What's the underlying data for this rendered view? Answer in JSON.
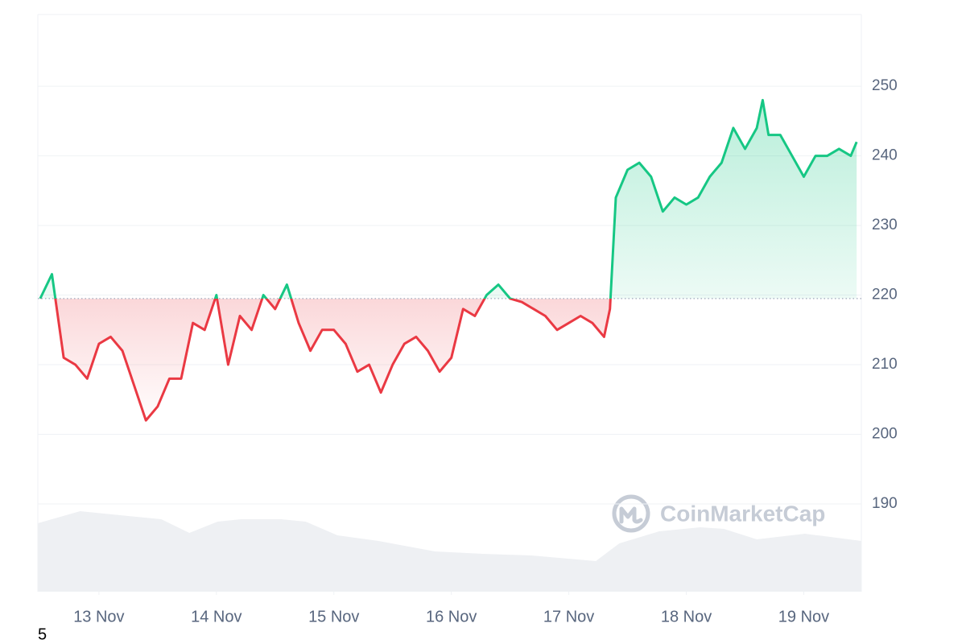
{
  "chart_data": {
    "type": "baseline-area",
    "x": [
      12.5,
      12.6,
      12.7,
      12.8,
      12.9,
      13.0,
      13.1,
      13.2,
      13.3,
      13.4,
      13.5,
      13.6,
      13.7,
      13.8,
      13.9,
      14.0,
      14.1,
      14.2,
      14.3,
      14.4,
      14.5,
      14.6,
      14.7,
      14.8,
      14.9,
      15.0,
      15.1,
      15.2,
      15.3,
      15.4,
      15.5,
      15.6,
      15.7,
      15.8,
      15.9,
      16.0,
      16.1,
      16.2,
      16.3,
      16.4,
      16.5,
      16.6,
      16.7,
      16.8,
      16.9,
      17.0,
      17.1,
      17.2,
      17.3,
      17.35,
      17.4,
      17.5,
      17.6,
      17.7,
      17.8,
      17.9,
      18.0,
      18.1,
      18.2,
      18.3,
      18.4,
      18.5,
      18.6,
      18.65,
      18.7,
      18.8,
      18.9,
      19.0,
      19.1,
      19.2,
      19.3,
      19.4,
      19.45
    ],
    "values": [
      219.5,
      223,
      211,
      210,
      208,
      213,
      214,
      212,
      207,
      202,
      204,
      208,
      208,
      216,
      215,
      220,
      210,
      217,
      215,
      220,
      218,
      221.5,
      216,
      212,
      215,
      215,
      213,
      209,
      210,
      206,
      210,
      213,
      214,
      212,
      209,
      211,
      218,
      217,
      220,
      221.5,
      219.5,
      219,
      218,
      217,
      215,
      216,
      217,
      216,
      214,
      218,
      234,
      238,
      239,
      237,
      232,
      234,
      233,
      234,
      237,
      239,
      244,
      241,
      244,
      248,
      243,
      243,
      240,
      237,
      240,
      240,
      241,
      240,
      242
    ],
    "baseline": 219.5,
    "up_color": "#16c784",
    "down_color": "#ea3943",
    "xlim": [
      12.48,
      19.49
    ],
    "xticks": [
      {
        "value": 13,
        "label": "13 Nov"
      },
      {
        "value": 14,
        "label": "14 Nov"
      },
      {
        "value": 15,
        "label": "15 Nov"
      },
      {
        "value": 16,
        "label": "16 Nov"
      },
      {
        "value": 17,
        "label": "17 Nov"
      },
      {
        "value": 18,
        "label": "18 Nov"
      },
      {
        "value": 19,
        "label": "19 Nov"
      }
    ],
    "ylim": [
      177.4,
      260.3
    ],
    "yticks": [
      190,
      200,
      210,
      220,
      230,
      240,
      250
    ],
    "grid": true,
    "volume": {
      "x": [
        12.48,
        12.84,
        13.18,
        13.53,
        13.77,
        14.01,
        14.21,
        14.55,
        14.76,
        15.03,
        15.38,
        15.86,
        16.27,
        16.68,
        17.23,
        17.43,
        17.77,
        18.12,
        18.32,
        18.6,
        19.01,
        19.49
      ],
      "values": [
        85,
        100,
        95,
        90,
        73,
        87,
        90,
        90,
        87,
        70,
        63,
        50,
        47,
        45,
        38,
        60,
        75,
        80,
        78,
        65,
        72,
        63
      ],
      "ylim": [
        0,
        100
      ],
      "color": "#eef0f3"
    },
    "watermark": "CoinMarketCap"
  },
  "stray_label": "5"
}
